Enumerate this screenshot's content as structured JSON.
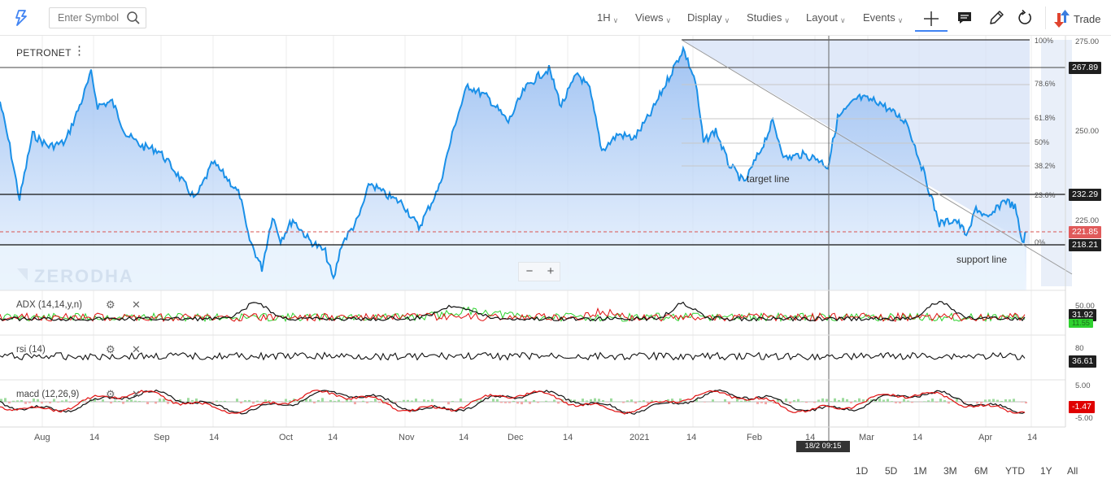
{
  "toolbar": {
    "search_placeholder": "Enter Symbol",
    "menus": [
      "1H",
      "Views",
      "Display",
      "Studies",
      "Layout",
      "Events"
    ],
    "trade_label": "Trade"
  },
  "chart": {
    "symbol": "PETRONET",
    "watermark": "ZERODHA",
    "annotations": {
      "target": "target line",
      "support": "support line"
    },
    "zoom_out": "−",
    "zoom_in": "+",
    "crosshair_date": "18/2 09:15",
    "price_axis": [
      "275.00",
      "250.00",
      "225.00"
    ],
    "fib_levels": [
      "100%",
      "78.6%",
      "61.8%",
      "50%",
      "38.2%",
      "23.6%",
      "0%"
    ],
    "price_tags": {
      "upper_line": "267.89",
      "target": "232.29",
      "current": "221.85",
      "support": "218.21"
    },
    "date_axis": [
      "Aug",
      "14",
      "Sep",
      "14",
      "Oct",
      "14",
      "Nov",
      "14",
      "Dec",
      "14",
      "2021",
      "14",
      "Feb",
      "14",
      "Mar",
      "14",
      "Apr",
      "14"
    ],
    "colors": {
      "price_line": "#1a90e8",
      "area": "#a9cbf5",
      "fib_band": "#d6e2f7",
      "tag_dark": "#1f1f1f",
      "tag_red": "#e05a5a"
    }
  },
  "studies": {
    "adx": {
      "label": "ADX (14,14,y,n)",
      "value": "31.92",
      "value2": "11.55",
      "axis": "50.00"
    },
    "rsi": {
      "label": "rsi (14)",
      "value": "36.61",
      "axis": "80"
    },
    "macd": {
      "label": "macd (12,26,9)",
      "value": "-1.47",
      "axis_top": "5.00",
      "axis_bottom": "-5.00"
    }
  },
  "ranges": [
    "1D",
    "5D",
    "1M",
    "3M",
    "6M",
    "YTD",
    "1Y",
    "All"
  ]
}
